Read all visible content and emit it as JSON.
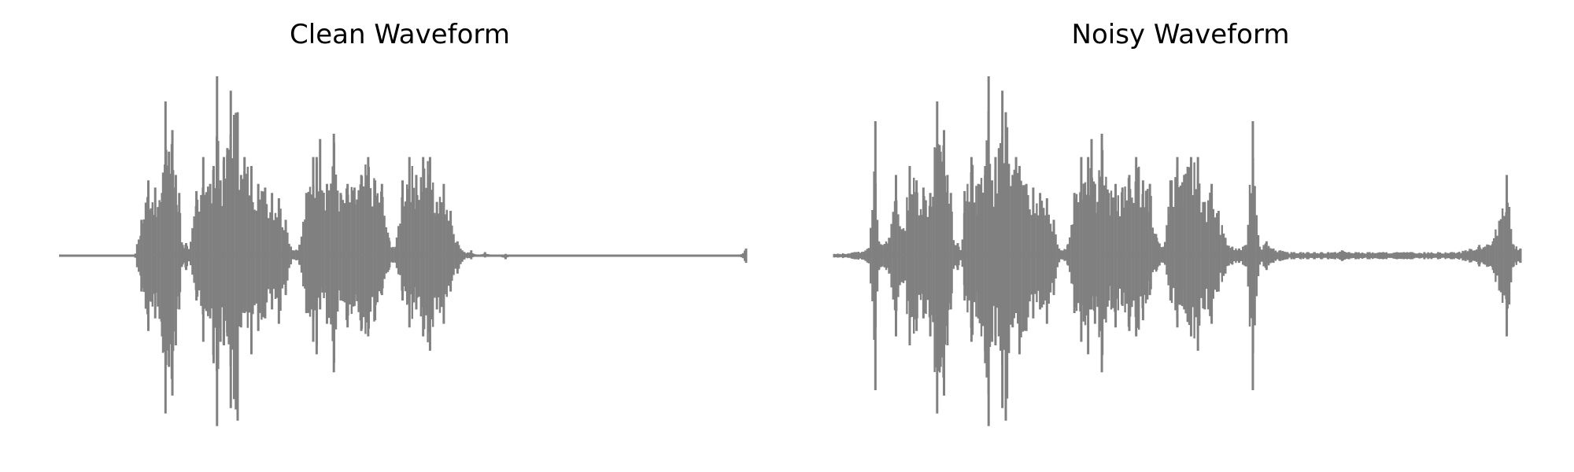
{
  "chart_data": [
    {
      "type": "line",
      "title": "Clean Waveform",
      "xlabel": "",
      "ylabel": "",
      "axes_visible": false,
      "grid": false,
      "ylim": [
        -1,
        1
      ],
      "color": "#808080",
      "series": [
        {
          "x": [
            0.0,
            0.11,
            0.12,
            0.13,
            0.14,
            0.15,
            0.155,
            0.16,
            0.165,
            0.17,
            0.175,
            0.18,
            0.185,
            0.19,
            0.2,
            0.21,
            0.22,
            0.225,
            0.23,
            0.235,
            0.24,
            0.245,
            0.25,
            0.26,
            0.265,
            0.27,
            0.28,
            0.29,
            0.3,
            0.31,
            0.32,
            0.33,
            0.34,
            0.35,
            0.36,
            0.37,
            0.375,
            0.38,
            0.39,
            0.4,
            0.41,
            0.42,
            0.43,
            0.44,
            0.45,
            0.46,
            0.47,
            0.48,
            0.49,
            0.5,
            0.51,
            0.52,
            0.53,
            0.54,
            0.55,
            0.56,
            0.57,
            0.58,
            0.59,
            0.6,
            0.61,
            0.62,
            0.63,
            0.64,
            0.65,
            0.66,
            0.67,
            0.68,
            0.69,
            0.7,
            0.71,
            0.72,
            0.73,
            0.74,
            0.75,
            0.76,
            0.78,
            0.8,
            0.82,
            0.84,
            0.86,
            0.88,
            0.9,
            0.92,
            0.94,
            0.96,
            0.98,
            0.99,
            1.0
          ],
          "y_min": [
            0.0,
            0.0,
            -0.2,
            -0.42,
            -0.35,
            -0.45,
            -0.88,
            -0.62,
            -0.78,
            -0.5,
            -0.3,
            -0.05,
            -0.08,
            -0.02,
            -0.25,
            -0.48,
            -0.35,
            -0.6,
            -0.95,
            -0.48,
            -0.5,
            -0.45,
            -0.85,
            -0.92,
            -0.4,
            -0.32,
            -0.55,
            -0.42,
            -0.35,
            -0.3,
            -0.38,
            -0.22,
            -0.02,
            -0.05,
            -0.32,
            -0.48,
            -0.55,
            -0.3,
            -0.38,
            -0.65,
            -0.25,
            -0.4,
            -0.28,
            -0.42,
            -0.45,
            -0.36,
            -0.22,
            -0.08,
            -0.04,
            -0.25,
            -0.4,
            -0.3,
            -0.45,
            -0.53,
            -0.3,
            -0.38,
            -0.2,
            -0.1,
            -0.02,
            -0.02,
            0.0,
            -0.01,
            0.0,
            0.0,
            -0.02,
            0.0,
            0.0,
            0.0,
            0.0,
            0.0,
            0.0,
            0.0,
            0.0,
            0.0,
            0.0,
            0.0,
            0.0,
            0.0,
            0.0,
            0.0,
            0.0,
            0.0,
            0.0,
            0.0,
            0.0,
            0.0,
            0.0,
            0.0,
            -0.04
          ],
          "y_max": [
            0.0,
            0.0,
            0.2,
            0.42,
            0.38,
            0.35,
            0.86,
            0.58,
            0.7,
            0.45,
            0.35,
            0.06,
            0.07,
            0.03,
            0.36,
            0.55,
            0.4,
            0.5,
            1.0,
            0.42,
            0.55,
            0.6,
            0.92,
            0.8,
            0.45,
            0.55,
            0.5,
            0.4,
            0.38,
            0.35,
            0.32,
            0.2,
            0.03,
            0.06,
            0.35,
            0.55,
            0.55,
            0.65,
            0.4,
            0.68,
            0.35,
            0.4,
            0.38,
            0.45,
            0.55,
            0.42,
            0.4,
            0.1,
            0.05,
            0.42,
            0.55,
            0.45,
            0.55,
            0.55,
            0.3,
            0.4,
            0.25,
            0.08,
            0.02,
            0.03,
            0.0,
            0.02,
            0.0,
            0.0,
            0.01,
            0.0,
            0.0,
            0.0,
            0.0,
            0.0,
            0.0,
            0.0,
            0.0,
            0.0,
            0.0,
            0.0,
            0.0,
            0.0,
            0.0,
            0.0,
            0.0,
            0.0,
            0.0,
            0.0,
            0.0,
            0.0,
            0.0,
            0.0,
            0.04
          ]
        }
      ]
    },
    {
      "type": "line",
      "title": "Noisy Waveform",
      "xlabel": "",
      "ylabel": "",
      "axes_visible": false,
      "grid": false,
      "ylim": [
        -1,
        1
      ],
      "color": "#808080",
      "series": [
        {
          "x": [
            0.0,
            0.03,
            0.05,
            0.06,
            0.065,
            0.07,
            0.08,
            0.09,
            0.1,
            0.11,
            0.12,
            0.13,
            0.14,
            0.15,
            0.155,
            0.16,
            0.165,
            0.17,
            0.175,
            0.18,
            0.185,
            0.19,
            0.2,
            0.21,
            0.22,
            0.225,
            0.23,
            0.235,
            0.24,
            0.245,
            0.25,
            0.26,
            0.265,
            0.27,
            0.28,
            0.29,
            0.3,
            0.31,
            0.32,
            0.33,
            0.34,
            0.35,
            0.36,
            0.37,
            0.375,
            0.38,
            0.39,
            0.4,
            0.41,
            0.42,
            0.43,
            0.44,
            0.45,
            0.46,
            0.47,
            0.48,
            0.49,
            0.5,
            0.51,
            0.52,
            0.53,
            0.54,
            0.55,
            0.56,
            0.57,
            0.58,
            0.59,
            0.6,
            0.61,
            0.62,
            0.63,
            0.64,
            0.65,
            0.66,
            0.67,
            0.68,
            0.69,
            0.7,
            0.71,
            0.72,
            0.73,
            0.74,
            0.75,
            0.76,
            0.78,
            0.8,
            0.82,
            0.84,
            0.86,
            0.88,
            0.9,
            0.92,
            0.94,
            0.96,
            0.98,
            0.99,
            1.0
          ],
          "y_min": [
            -0.01,
            -0.02,
            -0.04,
            -0.75,
            -0.08,
            -0.06,
            -0.1,
            -0.45,
            -0.12,
            -0.5,
            -0.42,
            -0.35,
            -0.45,
            -0.88,
            -0.62,
            -0.78,
            -0.5,
            -0.3,
            -0.05,
            -0.08,
            -0.02,
            -0.25,
            -0.48,
            -0.35,
            -0.6,
            -0.95,
            -0.48,
            -0.5,
            -0.45,
            -0.85,
            -0.92,
            -0.4,
            -0.32,
            -0.55,
            -0.42,
            -0.35,
            -0.3,
            -0.38,
            -0.22,
            -0.02,
            -0.05,
            -0.32,
            -0.48,
            -0.55,
            -0.3,
            -0.38,
            -0.65,
            -0.25,
            -0.4,
            -0.28,
            -0.42,
            -0.45,
            -0.36,
            -0.22,
            -0.08,
            -0.04,
            -0.25,
            -0.4,
            -0.3,
            -0.45,
            -0.53,
            -0.3,
            -0.38,
            -0.2,
            -0.1,
            -0.05,
            -0.04,
            -0.06,
            -0.75,
            -0.05,
            -0.08,
            -0.04,
            -0.03,
            -0.02,
            -0.02,
            -0.02,
            -0.02,
            -0.02,
            -0.02,
            -0.02,
            -0.02,
            -0.03,
            -0.02,
            -0.02,
            -0.02,
            -0.02,
            -0.02,
            -0.02,
            -0.02,
            -0.02,
            -0.02,
            -0.03,
            -0.06,
            -0.08,
            -0.45,
            -0.06,
            -0.04
          ],
          "y_max": [
            0.01,
            0.02,
            0.04,
            0.75,
            0.08,
            0.06,
            0.1,
            0.45,
            0.12,
            0.5,
            0.42,
            0.38,
            0.35,
            0.86,
            0.58,
            0.7,
            0.45,
            0.35,
            0.06,
            0.07,
            0.03,
            0.36,
            0.55,
            0.4,
            0.5,
            1.0,
            0.42,
            0.55,
            0.6,
            0.92,
            0.8,
            0.45,
            0.55,
            0.5,
            0.4,
            0.38,
            0.35,
            0.32,
            0.2,
            0.03,
            0.06,
            0.35,
            0.55,
            0.55,
            0.65,
            0.4,
            0.68,
            0.35,
            0.4,
            0.38,
            0.45,
            0.55,
            0.42,
            0.4,
            0.1,
            0.05,
            0.42,
            0.55,
            0.45,
            0.55,
            0.55,
            0.3,
            0.4,
            0.25,
            0.1,
            0.05,
            0.04,
            0.06,
            0.75,
            0.05,
            0.08,
            0.04,
            0.03,
            0.02,
            0.02,
            0.02,
            0.02,
            0.02,
            0.02,
            0.02,
            0.02,
            0.03,
            0.02,
            0.02,
            0.02,
            0.02,
            0.02,
            0.02,
            0.02,
            0.02,
            0.02,
            0.03,
            0.06,
            0.08,
            0.45,
            0.06,
            0.04
          ]
        }
      ]
    }
  ]
}
